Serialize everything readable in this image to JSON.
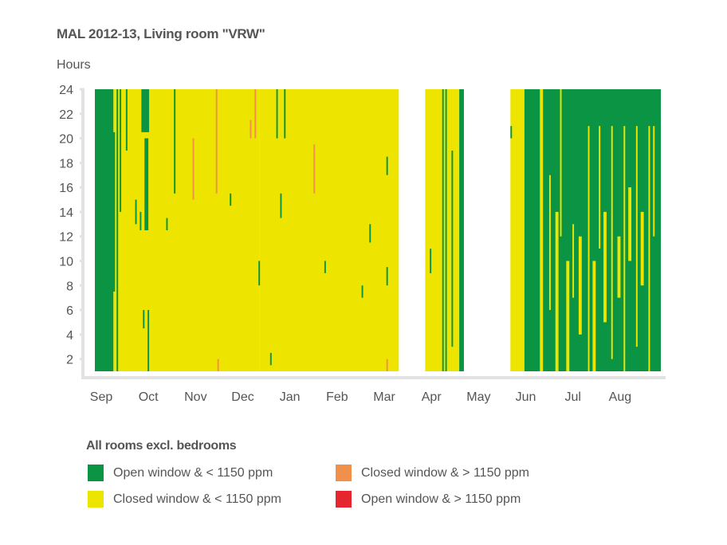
{
  "chart_data": {
    "type": "heatmap",
    "title": "MAL 2012-13, Living room \"VRW\"",
    "ylabel": "Hours",
    "xlabel": "",
    "ylim": [
      1,
      24
    ],
    "xlim_days": [
      0,
      365
    ],
    "yticks": [
      2,
      4,
      6,
      8,
      10,
      12,
      14,
      16,
      18,
      20,
      22,
      24
    ],
    "months": [
      "Sep",
      "Oct",
      "Nov",
      "Dec",
      "Jan",
      "Feb",
      "Mar",
      "Apr",
      "May",
      "Jun",
      "Jul",
      "Aug"
    ],
    "legend_title": "All rooms excl. bedrooms",
    "categories": {
      "open_low": {
        "label": "Open window & < 1150 ppm",
        "color": "#0a9444"
      },
      "closed_low": {
        "label": "Closed window & < 1150 ppm",
        "color": "#ede500"
      },
      "closed_high": {
        "label": "Closed window & > 1150 ppm",
        "color": "#f0904a"
      },
      "open_high": {
        "label": "Open window & > 1150 ppm",
        "color": "#e5252f"
      }
    },
    "segments_note": "[startDay, endDay, startHour, endHour, category]; day 0 = 1 Sep",
    "segments": [
      [
        0,
        12,
        1,
        24,
        "open_low"
      ],
      [
        12,
        106,
        1,
        24,
        "closed_low"
      ],
      [
        106.8,
        196,
        1,
        24,
        "closed_low"
      ],
      [
        213,
        238,
        1,
        24,
        "closed_low"
      ],
      [
        268,
        277,
        1,
        24,
        "closed_low"
      ],
      [
        277,
        365,
        1,
        24,
        "open_low"
      ],
      [
        11,
        13,
        7.5,
        20.5,
        "open_low"
      ],
      [
        14,
        15,
        1,
        24,
        "open_low"
      ],
      [
        16,
        17,
        14,
        24,
        "open_low"
      ],
      [
        20,
        21,
        19,
        24,
        "open_low"
      ],
      [
        30,
        35,
        20.5,
        24,
        "open_low"
      ],
      [
        32,
        34.5,
        12.5,
        20,
        "open_low"
      ],
      [
        29,
        30,
        12.5,
        14,
        "open_low"
      ],
      [
        34,
        35,
        1,
        6,
        "open_low"
      ],
      [
        31,
        32,
        4.5,
        6,
        "open_low"
      ],
      [
        26,
        27,
        13,
        15,
        "open_low"
      ],
      [
        46,
        47,
        12.5,
        13.5,
        "open_low"
      ],
      [
        51,
        52,
        15.5,
        24,
        "open_low"
      ],
      [
        87,
        88,
        14.5,
        15.5,
        "open_low"
      ],
      [
        63,
        64,
        15,
        20,
        "closed_high"
      ],
      [
        78,
        79,
        15.5,
        24,
        "closed_high"
      ],
      [
        79,
        80,
        1,
        2,
        "closed_high"
      ],
      [
        100,
        101,
        20,
        21.5,
        "closed_high"
      ],
      [
        103,
        104,
        20,
        24,
        "closed_high"
      ],
      [
        106,
        107,
        1,
        24,
        "closed_low"
      ],
      [
        105.5,
        106.5,
        8,
        10,
        "open_low"
      ],
      [
        117,
        118,
        20,
        24,
        "open_low"
      ],
      [
        122,
        123,
        20,
        24,
        "open_low"
      ],
      [
        119.5,
        120.5,
        13.5,
        15.5,
        "open_low"
      ],
      [
        113,
        114,
        1.5,
        2.5,
        "open_low"
      ],
      [
        141,
        142,
        15.5,
        19.5,
        "closed_high"
      ],
      [
        148,
        149,
        9,
        10,
        "open_low"
      ],
      [
        172,
        173,
        7,
        8,
        "open_low"
      ],
      [
        177,
        178,
        11.5,
        13,
        "open_low"
      ],
      [
        188,
        189,
        17,
        18.5,
        "open_low"
      ],
      [
        188,
        189,
        8,
        9.5,
        "open_low"
      ],
      [
        188,
        189,
        1,
        2,
        "closed_high"
      ],
      [
        216,
        217,
        9,
        11,
        "open_low"
      ],
      [
        224,
        225,
        1,
        24,
        "open_low"
      ],
      [
        226,
        227,
        1,
        24,
        "open_low"
      ],
      [
        230,
        231,
        3,
        19,
        "open_low"
      ],
      [
        235,
        238,
        1,
        24,
        "open_low"
      ],
      [
        268,
        269,
        20,
        21,
        "open_low"
      ],
      [
        282,
        285,
        12,
        24,
        "open_low"
      ],
      [
        287,
        289,
        1,
        24,
        "closed_low"
      ],
      [
        293,
        294,
        6,
        17,
        "closed_low"
      ],
      [
        297,
        299,
        1,
        14,
        "closed_low"
      ],
      [
        300,
        301,
        12,
        24,
        "closed_low"
      ],
      [
        304,
        306,
        1,
        10,
        "closed_low"
      ],
      [
        308,
        309,
        7,
        13,
        "closed_low"
      ],
      [
        312,
        314,
        4,
        12,
        "closed_low"
      ],
      [
        318,
        319,
        1,
        21,
        "closed_low"
      ],
      [
        321,
        323,
        1,
        10,
        "closed_low"
      ],
      [
        325,
        326,
        11,
        21,
        "closed_low"
      ],
      [
        328,
        330,
        5,
        14,
        "closed_low"
      ],
      [
        333,
        334,
        2,
        21,
        "closed_low"
      ],
      [
        337,
        339,
        7,
        12,
        "closed_low"
      ],
      [
        341,
        342,
        1,
        21,
        "closed_low"
      ],
      [
        344,
        346,
        10,
        16,
        "closed_low"
      ],
      [
        349,
        350,
        3,
        21,
        "closed_low"
      ],
      [
        352,
        354,
        8,
        14,
        "closed_low"
      ],
      [
        357,
        358,
        1,
        21,
        "closed_low"
      ],
      [
        360,
        361,
        12,
        21,
        "closed_low"
      ]
    ]
  }
}
